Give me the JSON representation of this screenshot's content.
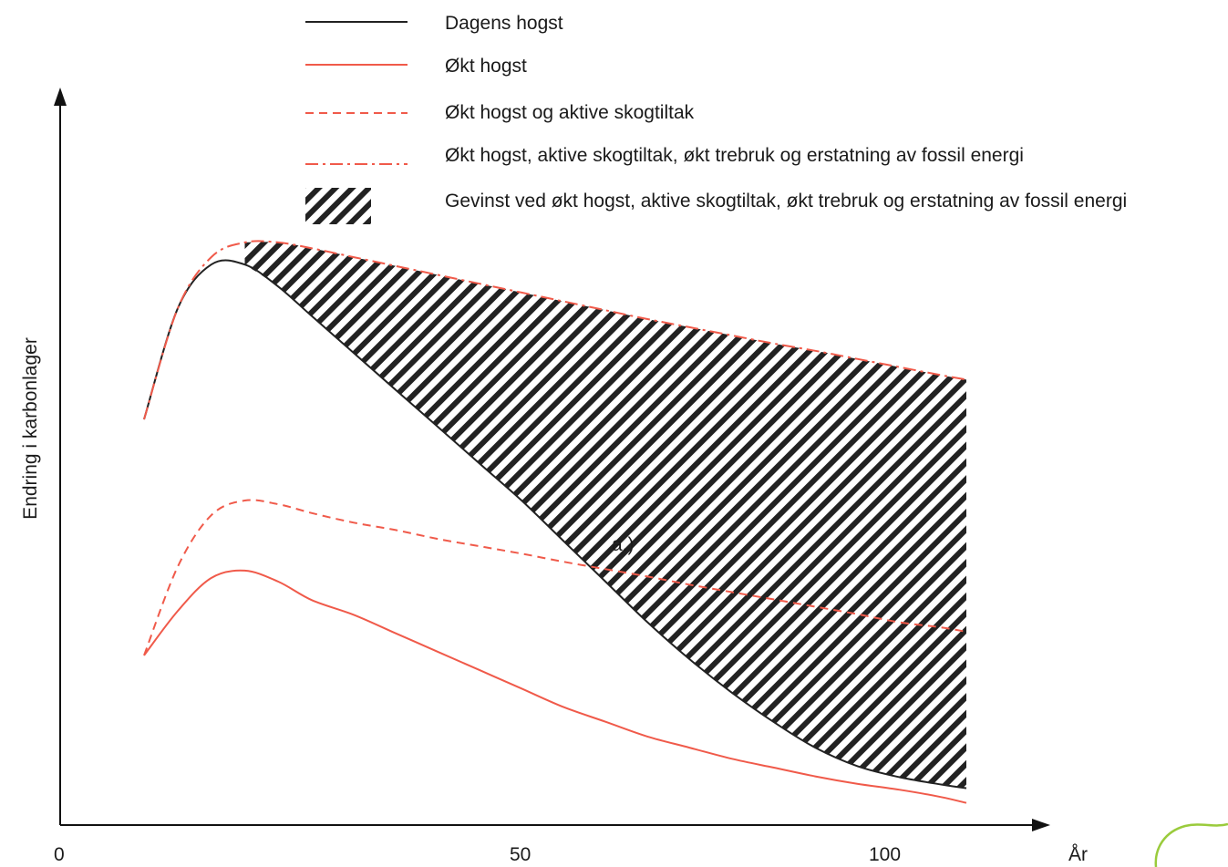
{
  "chart_data": {
    "type": "line",
    "title": "",
    "xlabel": "År",
    "ylabel": "Endring i karbonlager",
    "x_ticks": [
      "0",
      "50",
      "100"
    ],
    "xlim": [
      0,
      118
    ],
    "y_values_note": "",
    "ylim": [
      0,
      100
    ],
    "grid": false,
    "legend_placement": "top",
    "annotation": "a.)",
    "colors": {
      "black": "#222222",
      "red": "#f05a4a"
    },
    "x": [
      10,
      14,
      18,
      22,
      26,
      30,
      35,
      40,
      45,
      50,
      55,
      60,
      65,
      70,
      75,
      80,
      85,
      90,
      95,
      100,
      105,
      108
    ],
    "series": [
      {
        "name": "Dagens hogst",
        "style": "solid",
        "color": "#222222",
        "values": [
          55,
          70,
          76,
          76,
          73,
          69,
          64,
          59,
          54,
          49,
          44,
          38.5,
          33,
          27.5,
          22.5,
          18,
          14,
          10.5,
          8,
          6.5,
          5.5,
          5
        ]
      },
      {
        "name": "Økt hogst",
        "style": "solid",
        "color": "#f05a4a",
        "values": [
          23,
          29,
          33.5,
          34.5,
          33,
          30.5,
          28.5,
          26,
          23.5,
          21,
          18.5,
          16,
          14,
          12,
          10.5,
          9,
          7.8,
          6.6,
          5.6,
          4.8,
          3.8,
          3
        ]
      },
      {
        "name": "Økt hogst og aktive skogtiltak",
        "style": "dashed",
        "color": "#f05a4a",
        "values": [
          23,
          35,
          42,
          44,
          43.5,
          42.3,
          41,
          40,
          38.8,
          37.8,
          36.8,
          35.7,
          34.7,
          33.7,
          32.6,
          31.6,
          30.6,
          29.6,
          28.6,
          27.5,
          26.8,
          26.2
        ]
      },
      {
        "name": "Økt hogst, aktive skogtiltak, økt trebruk og erstatning av fossil energi",
        "style": "dashdot",
        "color": "#f05a4a",
        "values": [
          55,
          70,
          77,
          79,
          79,
          78.2,
          77,
          75.8,
          74.6,
          73.4,
          72.2,
          71,
          69.8,
          68.6,
          67.5,
          66.4,
          65.3,
          64.3,
          63.2,
          62.1,
          61,
          60.4
        ]
      }
    ],
    "shaded_area": {
      "name": "Gevinst ved økt hogst, aktive skogtiltak, økt trebruk og erstatning av fossil energi",
      "pattern": "diagonal-hatch",
      "upper_series": "Økt hogst, aktive skogtiltak, økt trebruk og erstatning av fossil energi",
      "lower_series": "Dagens hogst"
    }
  }
}
